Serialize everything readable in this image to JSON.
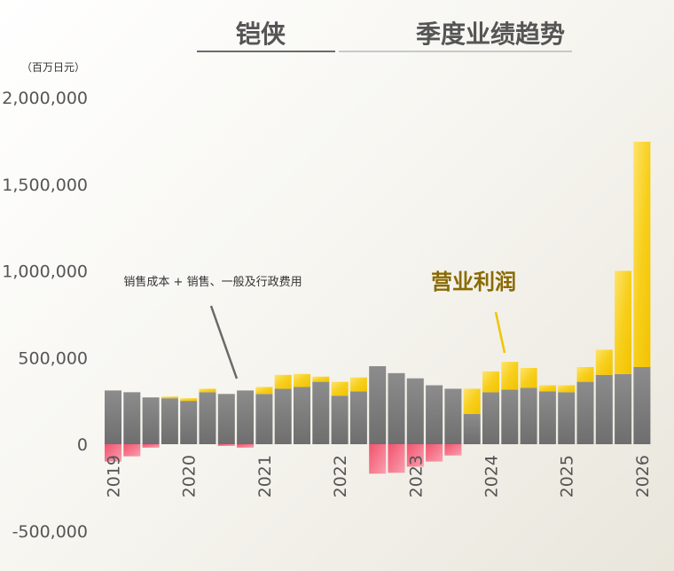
{
  "chart_data": {
    "type": "bar",
    "title_left": "铠侠",
    "title_right": "季度业绩趋势",
    "unit_label": "（百万日元）",
    "ylim": [
      -500000,
      2000000
    ],
    "y_ticks": [
      2000000,
      1500000,
      1000000,
      500000,
      0,
      -500000
    ],
    "y_tick_labels": [
      "2,000,000",
      "1,500,000",
      "1,000,000",
      "500,000",
      "0",
      "-500,000"
    ],
    "x_tick_labels": [
      "2019",
      "2020",
      "2021",
      "2022",
      "2023",
      "2024",
      "2025",
      "2026"
    ],
    "x_tick_bar_index": [
      0,
      4,
      8,
      12,
      16,
      20,
      24,
      28
    ],
    "grid": false,
    "legend": "none",
    "annotations": [
      {
        "text": "销售成本 + 销售、一般及行政费用"
      },
      {
        "text": "营业利润"
      }
    ],
    "series": [
      {
        "name": "销售成本 + 销售、一般及行政费用",
        "color": "#7a7a7a",
        "values": [
          310000,
          300000,
          270000,
          265000,
          250000,
          300000,
          290000,
          310000,
          290000,
          320000,
          330000,
          360000,
          280000,
          305000,
          450000,
          410000,
          380000,
          340000,
          320000,
          175000,
          300000,
          315000,
          325000,
          305000,
          300000,
          360000,
          400000,
          405000,
          445000
        ]
      },
      {
        "name": "营业利润",
        "color": "#f5c400",
        "negative_color": "#f0607a",
        "values": [
          -100000,
          -70000,
          -20000,
          10000,
          15000,
          20000,
          -10000,
          -20000,
          40000,
          80000,
          75000,
          30000,
          80000,
          80000,
          -170000,
          -165000,
          -130000,
          -100000,
          -65000,
          145000,
          120000,
          160000,
          115000,
          35000,
          40000,
          85000,
          145000,
          595000,
          1300000
        ]
      }
    ]
  }
}
